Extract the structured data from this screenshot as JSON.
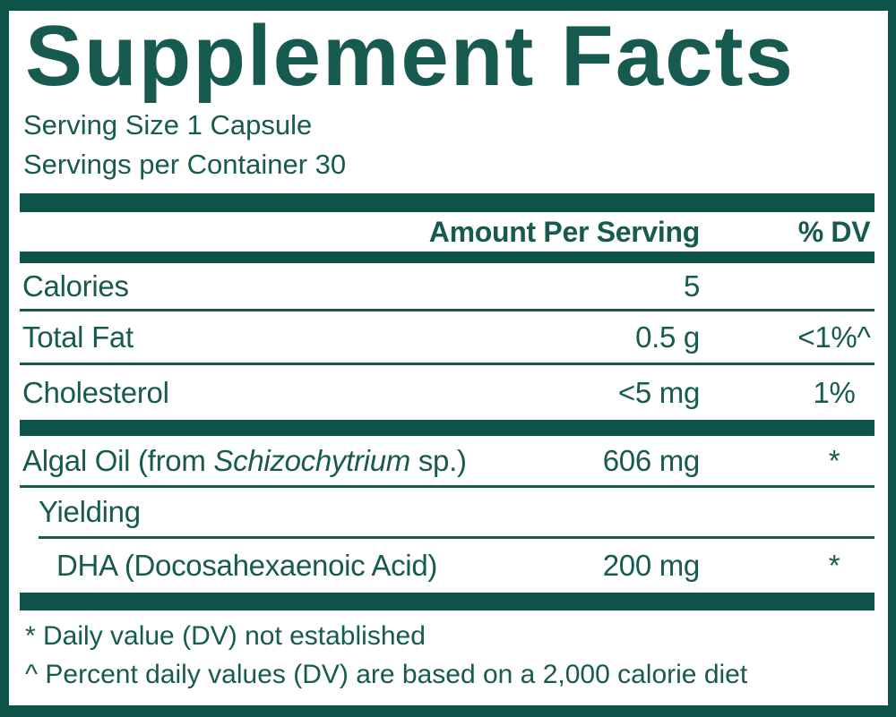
{
  "colors": {
    "panel_teal": "#0E5349",
    "text_teal": "#175A50"
  },
  "title": "Supplement Facts",
  "serving_info": {
    "serving_size": "Serving Size 1 Capsule",
    "servings_per_container": "Servings per Container 30"
  },
  "table": {
    "header": {
      "amount_label": "Amount Per Serving",
      "dv_label": "% DV"
    },
    "rows": [
      {
        "name": "Calories",
        "amount": "5",
        "dv": ""
      },
      {
        "name": "Total Fat",
        "amount": "0.5 g",
        "dv": "<1%^"
      },
      {
        "name": "Cholesterol",
        "amount": "<5 mg",
        "dv": "1%"
      },
      {
        "name_pre": "Algal Oil (from ",
        "name_italic": "Schizochytrium",
        "name_post": " sp.)",
        "amount": "606 mg",
        "dv": "*"
      },
      {
        "name": "Yielding",
        "amount": "",
        "dv": ""
      },
      {
        "name": "DHA (Docosahexaenoic Acid)",
        "amount": "200 mg",
        "dv": "*"
      }
    ]
  },
  "footnotes": [
    "* Daily value (DV) not established",
    "^ Percent daily values (DV) are based on a 2,000 calorie diet"
  ]
}
